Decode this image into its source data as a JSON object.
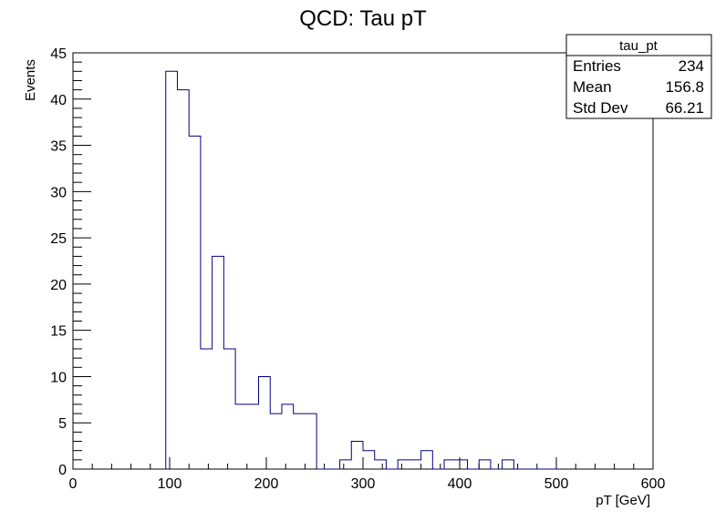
{
  "title": "QCD:  Tau pT",
  "stats_box": {
    "name": "tau_pt",
    "rows": [
      {
        "label": "Entries",
        "value": "234"
      },
      {
        "label": "Mean",
        "value": "156.8"
      },
      {
        "label": "Std Dev",
        "value": "66.21"
      }
    ]
  },
  "colors": {
    "histogram_line": "#000080",
    "frame": "#000000",
    "background": "#ffffff"
  },
  "chart_data": {
    "type": "bar",
    "style": "step-histogram",
    "title": "QCD:  Tau pT",
    "xlabel": "pT [GeV]",
    "ylabel": "Events",
    "xlim": [
      0,
      600
    ],
    "ylim": [
      0,
      45
    ],
    "x_ticks": [
      0,
      100,
      200,
      300,
      400,
      500,
      600
    ],
    "y_ticks": [
      0,
      5,
      10,
      15,
      20,
      25,
      30,
      35,
      40,
      45
    ],
    "bin_width": 12,
    "bin_edges_start": 96,
    "bin_edges_end": 504,
    "values": [
      43,
      41,
      36,
      13,
      23,
      13,
      7,
      7,
      10,
      6,
      7,
      6,
      6,
      0,
      0,
      1,
      3,
      2,
      1,
      0,
      1,
      1,
      2,
      0,
      1,
      1,
      0,
      1,
      0,
      1,
      0,
      0,
      0,
      0
    ],
    "grid": false,
    "legend": "none"
  }
}
